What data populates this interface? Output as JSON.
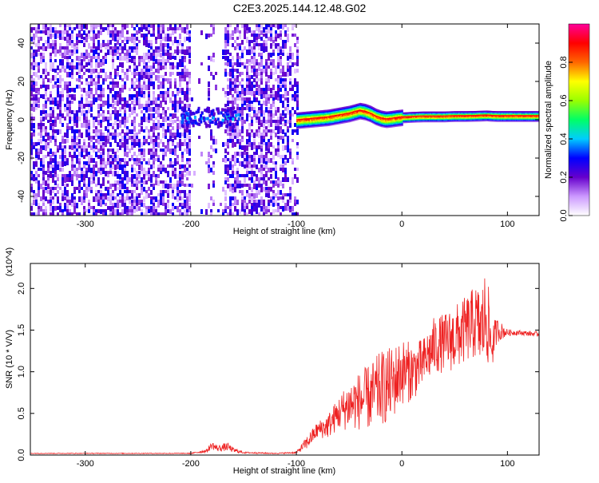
{
  "title": "C2E3.2025.144.12.48.G02",
  "chart_data": [
    {
      "type": "heatmap",
      "xlabel": "Height of straight line (km)",
      "ylabel": "Frequency (Hz)",
      "xlim": [
        -352,
        130
      ],
      "ylim": [
        -50,
        50
      ],
      "xticks": [
        -300,
        -200,
        -100,
        0,
        100
      ],
      "yticks": [
        -40,
        -20,
        0,
        20,
        40
      ],
      "colorbar": {
        "label": "Normalized spectral amplitude",
        "range": [
          0,
          1
        ],
        "ticks": [
          "0.0",
          "0.2",
          "0.4",
          "0.6",
          "0.8"
        ],
        "colormap": [
          "#ffffff",
          "#cc99ff",
          "#6600cc",
          "#0000ff",
          "#00ccff",
          "#00ff66",
          "#99ff00",
          "#ffff00",
          "#ff6600",
          "#ff0000",
          "#ff0099"
        ]
      },
      "regions": [
        {
          "x_range": [
            -352,
            -200
          ],
          "freq_range": [
            -50,
            48
          ],
          "amplitude": "low, noise"
        },
        {
          "x_range": [
            -200,
            -100
          ],
          "freq_range": [
            -50,
            48
          ],
          "amplitude": "low, noise with gaps at -200 to -180"
        },
        {
          "x_range": [
            -210,
            -160
          ],
          "freq_center": 2,
          "amplitude": 0.3
        },
        {
          "x_range": [
            -100,
            130
          ],
          "freq_center": 1,
          "amplitude": 0.9
        }
      ],
      "ridge": {
        "x": [
          -100,
          -90,
          -80,
          -70,
          -60,
          -50,
          -40,
          -35,
          -30,
          -25,
          -20,
          -15,
          -10,
          -5,
          0,
          10,
          20,
          30,
          40,
          50,
          60,
          70,
          80,
          85,
          90,
          100,
          110,
          120,
          130
        ],
        "freq": [
          0,
          0.5,
          1,
          1.5,
          2.5,
          3.5,
          5,
          4.5,
          3.5,
          2,
          1,
          0.5,
          0.8,
          1.2,
          1.5,
          1.8,
          2,
          2,
          2,
          2.2,
          2.2,
          2.3,
          2.5,
          2.3,
          2.2,
          2.2,
          2.2,
          2.2,
          2.2
        ]
      }
    },
    {
      "type": "line",
      "xlabel": "Height of straight line (km)",
      "ylabel": "SNR (10 * V/V)",
      "y_multiplier": "(x10^4)",
      "xlim": [
        -352,
        130
      ],
      "ylim": [
        0,
        2.3
      ],
      "xticks": [
        -300,
        -200,
        -100,
        0,
        100
      ],
      "yticks": [
        0.0,
        0.5,
        1.0,
        1.5,
        2.0
      ],
      "series": [
        {
          "color": "#ee2222",
          "x": [
            -352,
            -300,
            -250,
            -200,
            -185,
            -180,
            -175,
            -165,
            -160,
            -150,
            -120,
            -100,
            -90,
            -80,
            -70,
            -60,
            -50,
            -40,
            -30,
            -20,
            -10,
            0,
            10,
            20,
            30,
            40,
            50,
            60,
            70,
            75,
            80,
            85,
            90,
            100,
            110,
            120,
            130
          ],
          "y": [
            0.02,
            0.02,
            0.02,
            0.02,
            0.05,
            0.12,
            0.08,
            0.1,
            0.06,
            0.03,
            0.02,
            0.03,
            0.15,
            0.3,
            0.35,
            0.5,
            0.6,
            0.65,
            0.7,
            0.8,
            0.85,
            1.0,
            1.0,
            1.1,
            1.3,
            1.35,
            1.4,
            1.5,
            1.6,
            1.5,
            1.7,
            1.3,
            1.5,
            1.47,
            1.47,
            1.46,
            1.45
          ],
          "amplitude": [
            0.004,
            0.004,
            0.004,
            0.005,
            0.02,
            0.05,
            0.04,
            0.05,
            0.03,
            0.01,
            0.005,
            0.01,
            0.08,
            0.1,
            0.15,
            0.2,
            0.3,
            0.35,
            0.4,
            0.45,
            0.45,
            0.4,
            0.35,
            0.3,
            0.35,
            0.35,
            0.4,
            0.4,
            0.45,
            0.5,
            0.6,
            0.3,
            0.15,
            0.04,
            0.03,
            0.03,
            0.03
          ]
        }
      ]
    }
  ]
}
